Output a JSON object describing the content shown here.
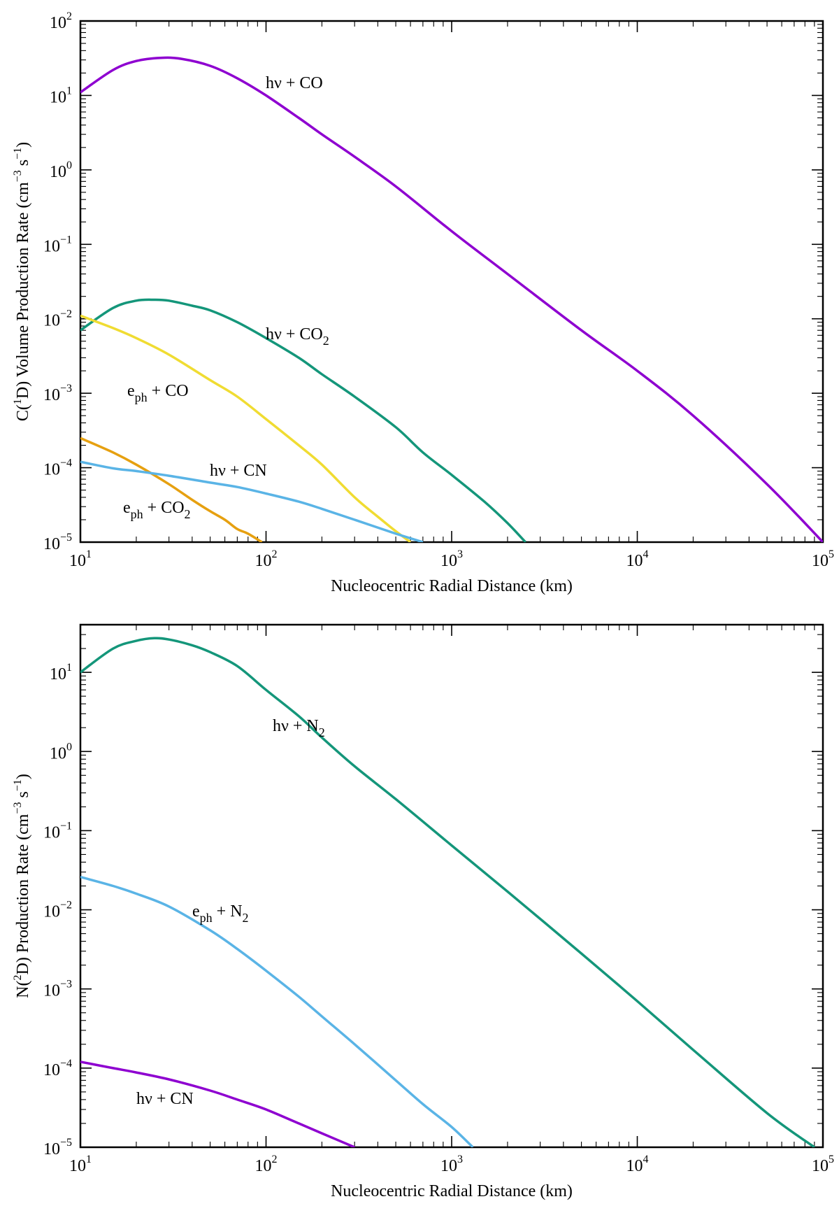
{
  "chart_data": [
    {
      "type": "line",
      "scale": "log-log",
      "title": "",
      "xlabel": "Nucleocentric Radial Distance (km)",
      "ylabel": {
        "prefix": "C(",
        "sup": "1",
        "mid": "D) Volume Production Rate (cm",
        "sup2": "−3",
        "mid2": " s",
        "sup3": "−1",
        "suffix": ")"
      },
      "xlim": [
        10,
        100000
      ],
      "ylim": [
        1e-05,
        100
      ],
      "x_ticks": [
        {
          "base": "10",
          "exp": "1"
        },
        {
          "base": "10",
          "exp": "2"
        },
        {
          "base": "10",
          "exp": "3"
        },
        {
          "base": "10",
          "exp": "4"
        },
        {
          "base": "10",
          "exp": "5"
        }
      ],
      "y_ticks": [
        {
          "base": "10",
          "exp": "−5"
        },
        {
          "base": "10",
          "exp": "−4"
        },
        {
          "base": "10",
          "exp": "−3"
        },
        {
          "base": "10",
          "exp": "−2"
        },
        {
          "base": "10",
          "exp": "−1"
        },
        {
          "base": "10",
          "exp": "0"
        },
        {
          "base": "10",
          "exp": "1"
        },
        {
          "base": "10",
          "exp": "2"
        }
      ],
      "series": [
        {
          "name": "hν + CO",
          "label_base": "hν + CO",
          "label_sub": "",
          "color": "#8e00d0",
          "x": [
            10,
            15,
            20,
            27,
            35,
            50,
            70,
            100,
            150,
            200,
            300,
            500,
            1000,
            2000,
            5000,
            10000,
            20000,
            50000,
            100000
          ],
          "y": [
            11,
            22,
            29,
            32,
            31,
            25,
            17,
            10,
            5,
            3,
            1.5,
            0.6,
            0.15,
            0.04,
            0.007,
            0.002,
            0.0005,
            6e-05,
            1e-05
          ]
        },
        {
          "name": "hν + CO2",
          "label_base": "hν + CO",
          "label_sub": "2",
          "color": "#14967a",
          "x": [
            10,
            15,
            20,
            25,
            30,
            40,
            50,
            70,
            100,
            150,
            200,
            300,
            500,
            700,
            1000,
            1500,
            2000,
            2500
          ],
          "y": [
            0.007,
            0.014,
            0.0175,
            0.018,
            0.0175,
            0.015,
            0.013,
            0.009,
            0.0055,
            0.003,
            0.0018,
            0.0009,
            0.00035,
            0.00016,
            8e-05,
            3.5e-05,
            1.8e-05,
            1e-05
          ]
        },
        {
          "name": "eph + CO",
          "label_base": "e",
          "label_sub": "ph",
          "label_tail": " + CO",
          "color": "#f0dc32",
          "x": [
            10,
            15,
            20,
            30,
            50,
            70,
            100,
            150,
            200,
            300,
            400,
            500,
            600
          ],
          "y": [
            0.011,
            0.0075,
            0.0055,
            0.0033,
            0.0015,
            0.0009,
            0.00045,
            0.0002,
            0.00011,
            4e-05,
            2.2e-05,
            1.4e-05,
            1e-05
          ]
        },
        {
          "name": "eph + CO2",
          "label_base": "e",
          "label_sub": "ph",
          "label_tail": " + CO",
          "label_sub2": "2",
          "color": "#e6a010",
          "x": [
            10,
            15,
            20,
            30,
            40,
            50,
            60,
            70,
            80,
            95
          ],
          "y": [
            0.00025,
            0.00016,
            0.00011,
            6e-05,
            3.7e-05,
            2.6e-05,
            2e-05,
            1.5e-05,
            1.3e-05,
            1e-05
          ]
        },
        {
          "name": "hν + CN",
          "label_base": "hν + CN",
          "label_sub": "",
          "color": "#5ab4e6",
          "x": [
            10,
            15,
            20,
            30,
            50,
            70,
            100,
            150,
            200,
            300,
            500,
            700
          ],
          "y": [
            0.00012,
            9.8e-05,
            9e-05,
            7.8e-05,
            6.3e-05,
            5.5e-05,
            4.5e-05,
            3.5e-05,
            2.8e-05,
            2e-05,
            1.3e-05,
            1e-05
          ]
        }
      ],
      "grid": false
    },
    {
      "type": "line",
      "scale": "log-log",
      "title": "",
      "xlabel": "Nucleocentric Radial Distance (km)",
      "ylabel": {
        "prefix": "N(",
        "sup": "2",
        "mid": "D) Production Rate (cm",
        "sup2": "−3",
        "mid2": " s",
        "sup3": "−1",
        "suffix": ")"
      },
      "xlim": [
        10,
        100000
      ],
      "ylim": [
        1e-05,
        40
      ],
      "x_ticks": [
        {
          "base": "10",
          "exp": "1"
        },
        {
          "base": "10",
          "exp": "2"
        },
        {
          "base": "10",
          "exp": "3"
        },
        {
          "base": "10",
          "exp": "4"
        },
        {
          "base": "10",
          "exp": "5"
        }
      ],
      "y_ticks": [
        {
          "base": "10",
          "exp": "−5"
        },
        {
          "base": "10",
          "exp": "−4"
        },
        {
          "base": "10",
          "exp": "−3"
        },
        {
          "base": "10",
          "exp": "−2"
        },
        {
          "base": "10",
          "exp": "−1"
        },
        {
          "base": "10",
          "exp": "0"
        },
        {
          "base": "10",
          "exp": "1"
        }
      ],
      "series": [
        {
          "name": "hν + N2",
          "label_base": "hν + N",
          "label_sub": "2",
          "color": "#14967a",
          "x": [
            10,
            15,
            20,
            25,
            30,
            40,
            50,
            70,
            100,
            150,
            200,
            300,
            500,
            1000,
            2000,
            5000,
            10000,
            20000,
            50000,
            90000
          ],
          "y": [
            10,
            20,
            25,
            27,
            26,
            22,
            18,
            12,
            6,
            2.8,
            1.5,
            0.65,
            0.25,
            0.065,
            0.017,
            0.0028,
            0.0007,
            0.00017,
            2.7e-05,
            1e-05
          ]
        },
        {
          "name": "eph + N2",
          "label_base": "e",
          "label_sub": "ph",
          "label_tail": " + N",
          "label_sub2": "2",
          "color": "#5ab4e6",
          "x": [
            10,
            15,
            20,
            30,
            50,
            70,
            100,
            150,
            200,
            300,
            500,
            700,
            1000,
            1300
          ],
          "y": [
            0.026,
            0.02,
            0.016,
            0.011,
            0.0055,
            0.0032,
            0.0017,
            0.0008,
            0.00045,
            0.0002,
            7e-05,
            3.5e-05,
            1.8e-05,
            1e-05
          ]
        },
        {
          "name": "hν + CN",
          "label_base": "hν + CN",
          "label_sub": "",
          "color": "#8e00d0",
          "x": [
            10,
            15,
            20,
            30,
            50,
            70,
            100,
            150,
            200,
            300
          ],
          "y": [
            0.00012,
            0.0001,
            8.8e-05,
            7.2e-05,
            5.2e-05,
            4e-05,
            3e-05,
            2e-05,
            1.5e-05,
            1e-05
          ]
        }
      ],
      "grid": false
    }
  ]
}
